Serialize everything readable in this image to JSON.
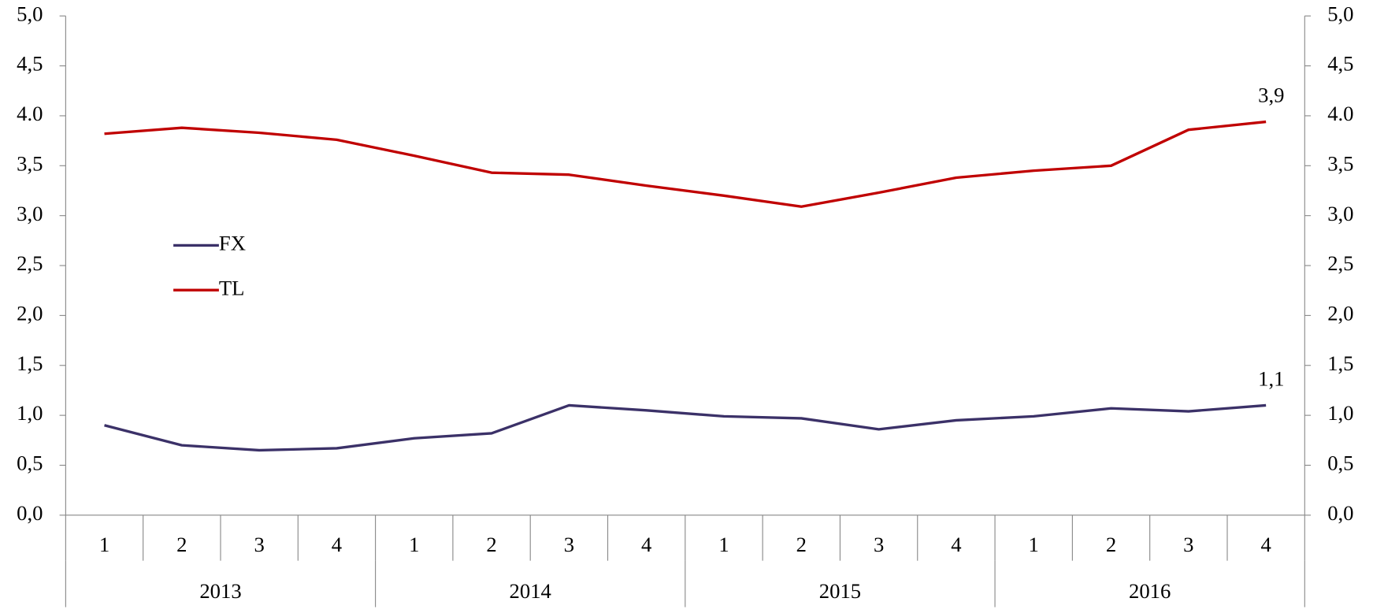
{
  "chart_data": {
    "type": "line",
    "categories": [
      "1",
      "2",
      "3",
      "4",
      "1",
      "2",
      "3",
      "4",
      "1",
      "2",
      "3",
      "4",
      "1",
      "2",
      "3",
      "4"
    ],
    "groups": [
      "2013",
      "2014",
      "2015",
      "2016"
    ],
    "series": [
      {
        "name": "FX",
        "color": "#3b3168",
        "values": [
          0.9,
          0.7,
          0.65,
          0.67,
          0.77,
          0.82,
          1.1,
          1.05,
          0.99,
          0.97,
          0.86,
          0.95,
          0.99,
          1.07,
          1.04,
          1.1
        ],
        "value_labels": [
          null,
          null,
          null,
          null,
          null,
          null,
          null,
          null,
          null,
          null,
          null,
          null,
          null,
          null,
          null,
          "1,1"
        ]
      },
      {
        "name": "TL",
        "color": "#c00000",
        "values": [
          3.82,
          3.88,
          3.83,
          3.76,
          3.6,
          3.43,
          3.41,
          3.3,
          3.2,
          3.09,
          3.23,
          3.38,
          3.45,
          3.5,
          3.86,
          3.94
        ],
        "value_labels": [
          null,
          null,
          null,
          null,
          null,
          null,
          null,
          null,
          null,
          null,
          null,
          null,
          null,
          null,
          null,
          "3,9"
        ]
      }
    ],
    "ylim": [
      0,
      5
    ],
    "yticks": [
      {
        "value": 0,
        "label": "0,0"
      },
      {
        "value": 0.5,
        "label": "0,5"
      },
      {
        "value": 1,
        "label": "1,0"
      },
      {
        "value": 1.5,
        "label": "1,5"
      },
      {
        "value": 2,
        "label": "2,0"
      },
      {
        "value": 2.5,
        "label": "2,5"
      },
      {
        "value": 3,
        "label": "3,0"
      },
      {
        "value": 3.5,
        "label": "3,5"
      },
      {
        "value": 4,
        "label": "4.0"
      },
      {
        "value": 4.5,
        "label": "4,5"
      },
      {
        "value": 5,
        "label": "5,0"
      }
    ],
    "legend": "left"
  }
}
